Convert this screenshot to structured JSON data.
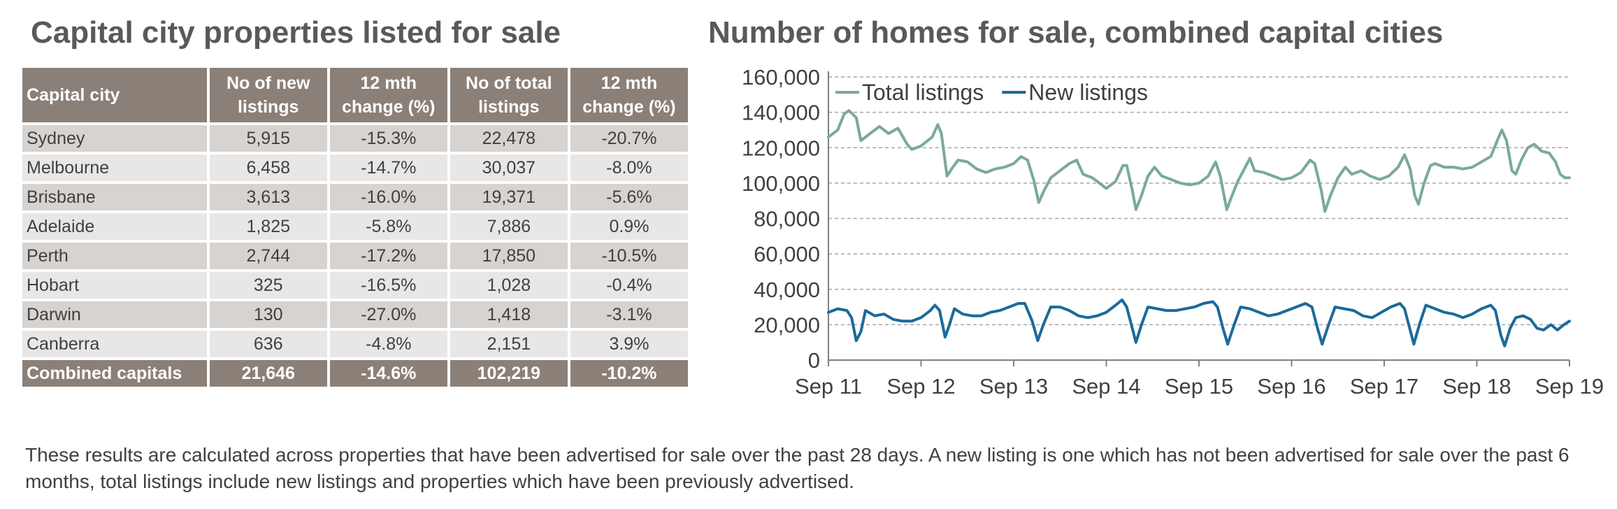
{
  "left_title": "Capital city properties listed for sale",
  "right_title": "Number of homes for sale, combined capital cities",
  "table": {
    "headers": [
      "Capital city",
      "No of new listings",
      "12 mth change (%)",
      "No of total listings",
      "12 mth change (%)"
    ],
    "rows": [
      [
        "Sydney",
        "5,915",
        "-15.3%",
        "22,478",
        "-20.7%"
      ],
      [
        "Melbourne",
        "6,458",
        "-14.7%",
        "30,037",
        "-8.0%"
      ],
      [
        "Brisbane",
        "3,613",
        "-16.0%",
        "19,371",
        "-5.6%"
      ],
      [
        "Adelaide",
        "1,825",
        "-5.8%",
        "7,886",
        "0.9%"
      ],
      [
        "Perth",
        "2,744",
        "-17.2%",
        "17,850",
        "-10.5%"
      ],
      [
        "Hobart",
        "325",
        "-16.5%",
        "1,028",
        "-0.4%"
      ],
      [
        "Darwin",
        "130",
        "-27.0%",
        "1,418",
        "-3.1%"
      ],
      [
        "Canberra",
        "636",
        "-4.8%",
        "2,151",
        "3.9%"
      ]
    ],
    "total": [
      "Combined capitals",
      "21,646",
      "-14.6%",
      "102,219",
      "-10.2%"
    ]
  },
  "footnote": "These results are calculated across properties that have been advertised for sale over the past 28 days.  A new listing is one which has not been advertised for sale over the past 6 months, total listings include new listings and properties which have been previously advertised.",
  "chart_data": {
    "type": "line",
    "title": "Number of homes for sale, combined capital cities",
    "xlabel": "",
    "ylabel": "",
    "ylim": [
      0,
      160000
    ],
    "yticks": [
      "0",
      "20,000",
      "40,000",
      "60,000",
      "80,000",
      "100,000",
      "120,000",
      "140,000",
      "160,000"
    ],
    "xticks": [
      "Sep 11",
      "Sep 12",
      "Sep 13",
      "Sep 14",
      "Sep 15",
      "Sep 16",
      "Sep 17",
      "Sep 18",
      "Sep 19"
    ],
    "grid": "horizontal dashed",
    "legend": "top-left",
    "series": [
      {
        "name": "Total listings",
        "color": "#7aa99c",
        "points": [
          [
            0.0,
            126000
          ],
          [
            0.1,
            130000
          ],
          [
            0.17,
            139000
          ],
          [
            0.22,
            141000
          ],
          [
            0.3,
            137000
          ],
          [
            0.35,
            124000
          ],
          [
            0.45,
            128000
          ],
          [
            0.55,
            132000
          ],
          [
            0.65,
            128000
          ],
          [
            0.75,
            131000
          ],
          [
            0.85,
            122000
          ],
          [
            0.9,
            119000
          ],
          [
            1.0,
            121000
          ],
          [
            1.12,
            126000
          ],
          [
            1.18,
            133000
          ],
          [
            1.22,
            128000
          ],
          [
            1.28,
            104000
          ],
          [
            1.33,
            108000
          ],
          [
            1.4,
            113000
          ],
          [
            1.5,
            112000
          ],
          [
            1.6,
            108000
          ],
          [
            1.7,
            106000
          ],
          [
            1.8,
            108000
          ],
          [
            1.9,
            109000
          ],
          [
            2.0,
            111000
          ],
          [
            2.08,
            115000
          ],
          [
            2.15,
            113000
          ],
          [
            2.22,
            101000
          ],
          [
            2.27,
            89000
          ],
          [
            2.33,
            96000
          ],
          [
            2.4,
            103000
          ],
          [
            2.5,
            107000
          ],
          [
            2.6,
            111000
          ],
          [
            2.68,
            113000
          ],
          [
            2.75,
            105000
          ],
          [
            2.85,
            103000
          ],
          [
            2.95,
            99000
          ],
          [
            3.0,
            97000
          ],
          [
            3.1,
            101000
          ],
          [
            3.18,
            110000
          ],
          [
            3.22,
            110000
          ],
          [
            3.28,
            96000
          ],
          [
            3.32,
            85000
          ],
          [
            3.38,
            93000
          ],
          [
            3.45,
            104000
          ],
          [
            3.52,
            109000
          ],
          [
            3.6,
            104000
          ],
          [
            3.7,
            102000
          ],
          [
            3.8,
            100000
          ],
          [
            3.9,
            99000
          ],
          [
            4.0,
            100000
          ],
          [
            4.1,
            104000
          ],
          [
            4.18,
            112000
          ],
          [
            4.23,
            104000
          ],
          [
            4.3,
            85000
          ],
          [
            4.35,
            92000
          ],
          [
            4.42,
            101000
          ],
          [
            4.5,
            109000
          ],
          [
            4.55,
            114000
          ],
          [
            4.6,
            107000
          ],
          [
            4.7,
            106000
          ],
          [
            4.8,
            104000
          ],
          [
            4.9,
            102000
          ],
          [
            5.0,
            103000
          ],
          [
            5.1,
            106000
          ],
          [
            5.2,
            113000
          ],
          [
            5.25,
            111000
          ],
          [
            5.32,
            96000
          ],
          [
            5.36,
            84000
          ],
          [
            5.42,
            93000
          ],
          [
            5.5,
            103000
          ],
          [
            5.58,
            109000
          ],
          [
            5.65,
            105000
          ],
          [
            5.75,
            107000
          ],
          [
            5.85,
            104000
          ],
          [
            5.95,
            102000
          ],
          [
            6.05,
            104000
          ],
          [
            6.15,
            109000
          ],
          [
            6.22,
            116000
          ],
          [
            6.28,
            108000
          ],
          [
            6.33,
            93000
          ],
          [
            6.37,
            88000
          ],
          [
            6.43,
            100000
          ],
          [
            6.5,
            110000
          ],
          [
            6.55,
            111000
          ],
          [
            6.65,
            109000
          ],
          [
            6.75,
            109000
          ],
          [
            6.85,
            108000
          ],
          [
            6.95,
            109000
          ],
          [
            7.05,
            112000
          ],
          [
            7.15,
            115000
          ],
          [
            7.22,
            124000
          ],
          [
            7.27,
            130000
          ],
          [
            7.32,
            124000
          ],
          [
            7.38,
            107000
          ],
          [
            7.42,
            105000
          ],
          [
            7.48,
            113000
          ],
          [
            7.55,
            120000
          ],
          [
            7.62,
            122000
          ],
          [
            7.7,
            118000
          ],
          [
            7.78,
            117000
          ],
          [
            7.85,
            112000
          ],
          [
            7.9,
            105000
          ],
          [
            7.95,
            103000
          ],
          [
            8.0,
            103000
          ]
        ]
      },
      {
        "name": "New listings",
        "color": "#1b6a9a",
        "points": [
          [
            0.0,
            27000
          ],
          [
            0.1,
            29000
          ],
          [
            0.2,
            28000
          ],
          [
            0.25,
            24000
          ],
          [
            0.3,
            11000
          ],
          [
            0.35,
            16000
          ],
          [
            0.4,
            28000
          ],
          [
            0.5,
            25000
          ],
          [
            0.6,
            26000
          ],
          [
            0.7,
            23000
          ],
          [
            0.8,
            22000
          ],
          [
            0.9,
            22000
          ],
          [
            1.0,
            24000
          ],
          [
            1.1,
            28000
          ],
          [
            1.15,
            31000
          ],
          [
            1.2,
            28000
          ],
          [
            1.26,
            13000
          ],
          [
            1.3,
            19000
          ],
          [
            1.36,
            29000
          ],
          [
            1.45,
            26000
          ],
          [
            1.55,
            25000
          ],
          [
            1.65,
            25000
          ],
          [
            1.75,
            27000
          ],
          [
            1.85,
            28000
          ],
          [
            1.95,
            30000
          ],
          [
            2.05,
            32000
          ],
          [
            2.12,
            32000
          ],
          [
            2.2,
            22000
          ],
          [
            2.26,
            11000
          ],
          [
            2.32,
            20000
          ],
          [
            2.4,
            30000
          ],
          [
            2.5,
            30000
          ],
          [
            2.6,
            28000
          ],
          [
            2.7,
            25000
          ],
          [
            2.8,
            24000
          ],
          [
            2.9,
            25000
          ],
          [
            3.0,
            27000
          ],
          [
            3.1,
            31000
          ],
          [
            3.17,
            34000
          ],
          [
            3.22,
            30000
          ],
          [
            3.28,
            18000
          ],
          [
            3.32,
            10000
          ],
          [
            3.38,
            20000
          ],
          [
            3.45,
            30000
          ],
          [
            3.55,
            29000
          ],
          [
            3.65,
            28000
          ],
          [
            3.75,
            28000
          ],
          [
            3.85,
            29000
          ],
          [
            3.95,
            30000
          ],
          [
            4.05,
            32000
          ],
          [
            4.15,
            33000
          ],
          [
            4.2,
            30000
          ],
          [
            4.26,
            18000
          ],
          [
            4.31,
            9000
          ],
          [
            4.38,
            20000
          ],
          [
            4.45,
            30000
          ],
          [
            4.55,
            29000
          ],
          [
            4.65,
            27000
          ],
          [
            4.75,
            25000
          ],
          [
            4.85,
            26000
          ],
          [
            4.95,
            28000
          ],
          [
            5.05,
            30000
          ],
          [
            5.15,
            32000
          ],
          [
            5.22,
            30000
          ],
          [
            5.28,
            18000
          ],
          [
            5.33,
            9000
          ],
          [
            5.4,
            20000
          ],
          [
            5.47,
            30000
          ],
          [
            5.57,
            29000
          ],
          [
            5.67,
            28000
          ],
          [
            5.77,
            25000
          ],
          [
            5.87,
            24000
          ],
          [
            5.97,
            27000
          ],
          [
            6.07,
            30000
          ],
          [
            6.17,
            32000
          ],
          [
            6.22,
            29000
          ],
          [
            6.28,
            17000
          ],
          [
            6.32,
            9000
          ],
          [
            6.38,
            20000
          ],
          [
            6.45,
            31000
          ],
          [
            6.55,
            29000
          ],
          [
            6.65,
            27000
          ],
          [
            6.75,
            26000
          ],
          [
            6.85,
            24000
          ],
          [
            6.95,
            26000
          ],
          [
            7.05,
            29000
          ],
          [
            7.15,
            31000
          ],
          [
            7.2,
            28000
          ],
          [
            7.26,
            14000
          ],
          [
            7.3,
            8000
          ],
          [
            7.36,
            18000
          ],
          [
            7.42,
            24000
          ],
          [
            7.5,
            25000
          ],
          [
            7.58,
            23000
          ],
          [
            7.65,
            18000
          ],
          [
            7.72,
            17000
          ],
          [
            7.8,
            20000
          ],
          [
            7.87,
            17000
          ],
          [
            7.94,
            20000
          ],
          [
            8.0,
            22000
          ]
        ]
      }
    ]
  }
}
